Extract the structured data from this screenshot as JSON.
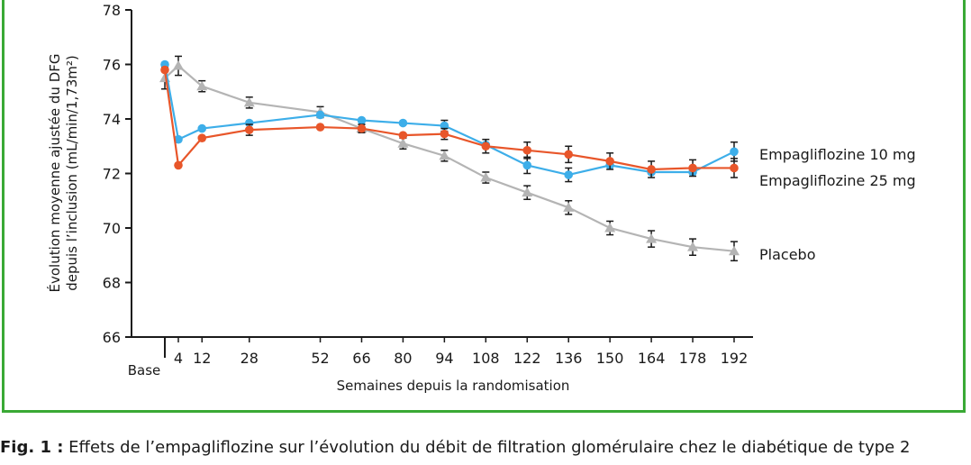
{
  "chart_data": {
    "type": "line",
    "ylabel_line1": "Évolution moyenne ajustée du DFG",
    "ylabel_line2": "depuis l’inclusion (mL/min/1,73m²)",
    "xlabel": "Semaines depuis la randomisation",
    "base_label": "Base",
    "ylim": [
      66,
      78
    ],
    "yticks": [
      66,
      68,
      70,
      72,
      74,
      76,
      78
    ],
    "x_positions": [
      0,
      4,
      12,
      28,
      52,
      66,
      80,
      94,
      108,
      122,
      136,
      150,
      164,
      178,
      192
    ],
    "x_tick_labels": [
      "",
      "4",
      "12",
      "28",
      "52",
      "66",
      "80",
      "94",
      "108",
      "122",
      "136",
      "150",
      "164",
      "178",
      "192"
    ],
    "series": [
      {
        "name": "Empagliflozine 10 mg",
        "color": "#3daee9",
        "marker": "circle",
        "values": [
          76.0,
          73.25,
          73.65,
          73.85,
          74.15,
          73.95,
          73.85,
          73.75,
          73.05,
          72.3,
          71.95,
          72.3,
          72.05,
          72.05,
          72.8
        ],
        "err": [
          0,
          0,
          0,
          0,
          0,
          0,
          0,
          0.2,
          0,
          0.3,
          0.25,
          0,
          0,
          0,
          0.35
        ]
      },
      {
        "name": "Empagliflozine 25 mg",
        "color": "#e8562a",
        "marker": "circle",
        "values": [
          75.8,
          72.3,
          73.3,
          73.6,
          73.7,
          73.65,
          73.4,
          73.45,
          73.0,
          72.85,
          72.7,
          72.45,
          72.15,
          72.2,
          72.2
        ],
        "err": [
          0,
          0,
          0,
          0.2,
          0,
          0.15,
          0,
          0.2,
          0.25,
          0.3,
          0.3,
          0.3,
          0.3,
          0.3,
          0.35
        ]
      },
      {
        "name": "Placebo",
        "color": "#b4b4b4",
        "marker": "triangle",
        "values": [
          75.5,
          75.95,
          75.2,
          74.6,
          74.25,
          73.65,
          73.1,
          72.65,
          71.85,
          71.3,
          70.75,
          70.0,
          69.6,
          69.3,
          69.15
        ],
        "err": [
          0.4,
          0.35,
          0.2,
          0.2,
          0.2,
          0.15,
          0.2,
          0.2,
          0.2,
          0.25,
          0.25,
          0.25,
          0.3,
          0.3,
          0.35
        ]
      }
    ]
  },
  "caption": {
    "prefix": "Fig. 1 :",
    "text": " Effets de l’empagliflozine sur l’évolution du débit de filtration glomérulaire chez le diabétique de type 2"
  }
}
